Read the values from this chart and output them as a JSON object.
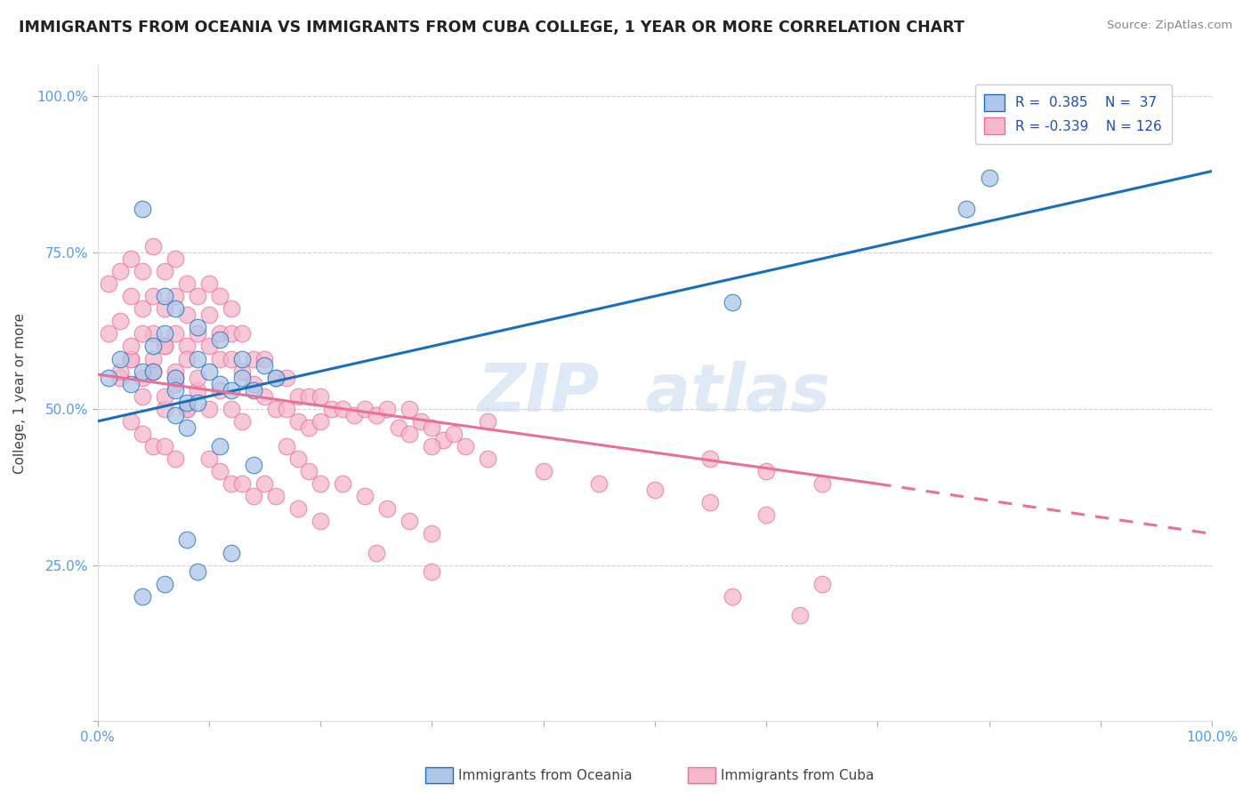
{
  "title": "IMMIGRANTS FROM OCEANIA VS IMMIGRANTS FROM CUBA COLLEGE, 1 YEAR OR MORE CORRELATION CHART",
  "source_text": "Source: ZipAtlas.com",
  "ylabel": "College, 1 year or more",
  "xlim": [
    0.0,
    1.0
  ],
  "ylim": [
    0.0,
    1.05
  ],
  "yticks": [
    0.0,
    0.25,
    0.5,
    0.75,
    1.0
  ],
  "ytick_labels": [
    "",
    "25.0%",
    "50.0%",
    "75.0%",
    "100.0%"
  ],
  "color_oceania": "#aec6e8",
  "color_cuba": "#f5b8cb",
  "line_color_oceania": "#1a6fba",
  "line_color_cuba": "#e8709a",
  "background_color": "#ffffff",
  "grid_color": "#cccccc",
  "line_oceania_x0": 0.0,
  "line_oceania_y0": 0.48,
  "line_oceania_x1": 1.0,
  "line_oceania_y1": 0.88,
  "line_cuba_x0": 0.0,
  "line_cuba_y0": 0.555,
  "line_cuba_x1": 0.7,
  "line_cuba_y1": 0.38,
  "line_cuba_dash_x0": 0.7,
  "line_cuba_dash_y0": 0.38,
  "line_cuba_dash_x1": 1.0,
  "line_cuba_dash_y1": 0.3,
  "oceania_x": [
    0.01,
    0.02,
    0.03,
    0.04,
    0.05,
    0.05,
    0.06,
    0.07,
    0.07,
    0.08,
    0.09,
    0.1,
    0.11,
    0.12,
    0.13,
    0.14,
    0.15,
    0.16,
    0.04,
    0.06,
    0.07,
    0.09,
    0.11,
    0.13,
    0.07,
    0.08,
    0.09,
    0.11,
    0.14,
    0.78,
    0.8,
    0.57,
    0.04,
    0.06,
    0.09,
    0.12,
    0.08
  ],
  "oceania_y": [
    0.55,
    0.58,
    0.54,
    0.56,
    0.6,
    0.56,
    0.62,
    0.55,
    0.53,
    0.51,
    0.58,
    0.56,
    0.54,
    0.53,
    0.55,
    0.53,
    0.57,
    0.55,
    0.82,
    0.68,
    0.66,
    0.63,
    0.61,
    0.58,
    0.49,
    0.47,
    0.51,
    0.44,
    0.41,
    0.82,
    0.87,
    0.67,
    0.2,
    0.22,
    0.24,
    0.27,
    0.29
  ],
  "cuba_x": [
    0.01,
    0.01,
    0.02,
    0.02,
    0.03,
    0.03,
    0.04,
    0.04,
    0.05,
    0.05,
    0.05,
    0.06,
    0.06,
    0.06,
    0.07,
    0.07,
    0.07,
    0.08,
    0.08,
    0.08,
    0.09,
    0.09,
    0.1,
    0.1,
    0.1,
    0.11,
    0.11,
    0.11,
    0.12,
    0.12,
    0.12,
    0.13,
    0.13,
    0.14,
    0.14,
    0.15,
    0.15,
    0.16,
    0.16,
    0.17,
    0.17,
    0.18,
    0.18,
    0.19,
    0.19,
    0.2,
    0.2,
    0.21,
    0.22,
    0.23,
    0.24,
    0.25,
    0.26,
    0.27,
    0.28,
    0.29,
    0.3,
    0.31,
    0.32,
    0.33,
    0.02,
    0.03,
    0.04,
    0.05,
    0.06,
    0.07,
    0.08,
    0.09,
    0.1,
    0.11,
    0.12,
    0.13,
    0.02,
    0.03,
    0.04,
    0.05,
    0.06,
    0.07,
    0.08,
    0.03,
    0.04,
    0.05,
    0.06,
    0.07,
    0.08,
    0.09,
    0.03,
    0.04,
    0.05,
    0.06,
    0.07,
    0.1,
    0.11,
    0.12,
    0.13,
    0.14,
    0.15,
    0.16,
    0.17,
    0.18,
    0.19,
    0.2,
    0.22,
    0.24,
    0.26,
    0.28,
    0.3,
    0.35,
    0.28,
    0.3,
    0.35,
    0.4,
    0.45,
    0.5,
    0.55,
    0.6,
    0.65,
    0.55,
    0.6,
    0.65,
    0.18,
    0.2,
    0.25,
    0.3,
    0.57,
    0.63
  ],
  "cuba_y": [
    0.62,
    0.7,
    0.64,
    0.72,
    0.68,
    0.74,
    0.66,
    0.72,
    0.62,
    0.68,
    0.76,
    0.6,
    0.66,
    0.72,
    0.62,
    0.68,
    0.74,
    0.6,
    0.65,
    0.7,
    0.62,
    0.68,
    0.6,
    0.65,
    0.7,
    0.62,
    0.68,
    0.58,
    0.62,
    0.66,
    0.58,
    0.62,
    0.56,
    0.58,
    0.54,
    0.58,
    0.52,
    0.55,
    0.5,
    0.55,
    0.5,
    0.52,
    0.48,
    0.52,
    0.47,
    0.52,
    0.48,
    0.5,
    0.5,
    0.49,
    0.5,
    0.49,
    0.5,
    0.47,
    0.5,
    0.48,
    0.47,
    0.45,
    0.46,
    0.44,
    0.55,
    0.58,
    0.52,
    0.56,
    0.5,
    0.54,
    0.5,
    0.53,
    0.5,
    0.53,
    0.5,
    0.48,
    0.56,
    0.58,
    0.55,
    0.56,
    0.52,
    0.55,
    0.5,
    0.6,
    0.62,
    0.58,
    0.6,
    0.56,
    0.58,
    0.55,
    0.48,
    0.46,
    0.44,
    0.44,
    0.42,
    0.42,
    0.4,
    0.38,
    0.38,
    0.36,
    0.38,
    0.36,
    0.44,
    0.42,
    0.4,
    0.38,
    0.38,
    0.36,
    0.34,
    0.32,
    0.3,
    0.48,
    0.46,
    0.44,
    0.42,
    0.4,
    0.38,
    0.37,
    0.35,
    0.33,
    0.22,
    0.42,
    0.4,
    0.38,
    0.34,
    0.32,
    0.27,
    0.24,
    0.2,
    0.17
  ]
}
